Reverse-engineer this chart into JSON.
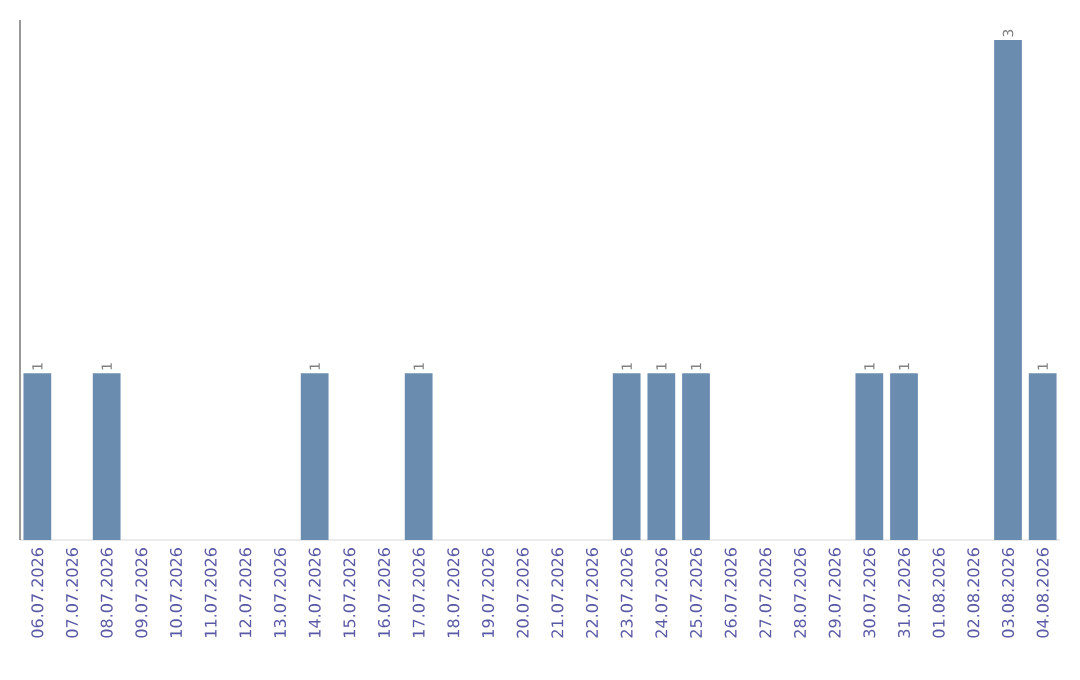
{
  "chart_data": {
    "type": "bar",
    "categories": [
      "06.07.2026",
      "07.07.2026",
      "08.07.2026",
      "09.07.2026",
      "10.07.2026",
      "11.07.2026",
      "12.07.2026",
      "13.07.2026",
      "14.07.2026",
      "15.07.2026",
      "16.07.2026",
      "17.07.2026",
      "18.07.2026",
      "19.07.2026",
      "20.07.2026",
      "21.07.2026",
      "22.07.2026",
      "23.07.2026",
      "24.07.2026",
      "25.07.2026",
      "26.07.2026",
      "27.07.2026",
      "28.07.2026",
      "29.07.2026",
      "30.07.2026",
      "31.07.2026",
      "01.08.2026",
      "02.08.2026",
      "03.08.2026",
      "04.08.2026"
    ],
    "values": [
      1,
      0,
      1,
      0,
      0,
      0,
      0,
      0,
      1,
      0,
      0,
      1,
      0,
      0,
      0,
      0,
      0,
      1,
      1,
      1,
      0,
      0,
      0,
      0,
      1,
      1,
      0,
      0,
      3,
      1
    ],
    "value_labels": [
      "1",
      null,
      "1",
      null,
      null,
      null,
      null,
      null,
      "1",
      null,
      null,
      "1",
      null,
      null,
      null,
      null,
      null,
      "1",
      "1",
      "1",
      null,
      null,
      null,
      null,
      "1",
      "1",
      null,
      null,
      "3",
      "1"
    ],
    "color": "#6a8caf",
    "tick_labels": "x",
    "grid": false
  }
}
